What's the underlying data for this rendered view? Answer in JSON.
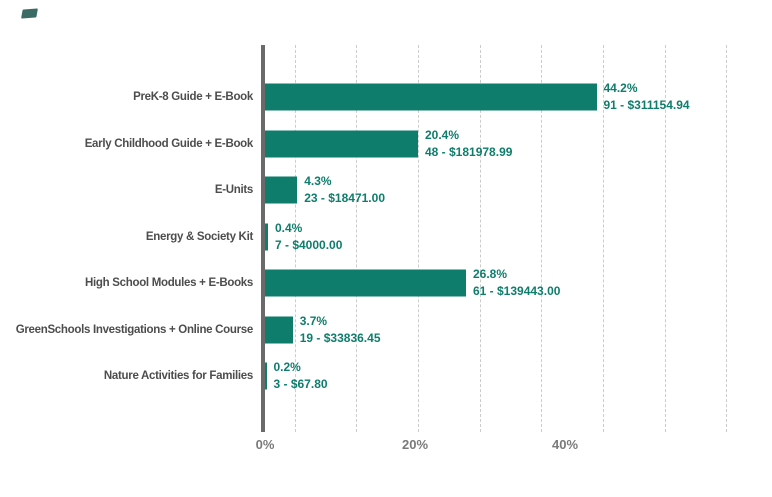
{
  "colors": {
    "bar": "#0e7d6c",
    "value_text": "#0e7d6c",
    "category_text": "#4d4d4d",
    "tick_text": "#7a7a7a"
  },
  "chart_data": {
    "type": "bar",
    "orientation": "horizontal",
    "title": "",
    "xlabel": "",
    "ylabel": "",
    "xlim": [
      0,
      62.7
    ],
    "grid": "vertical-dashed",
    "legend": "none",
    "categories": [
      "PreK-8 Guide + E-Book",
      "Early Childhood Guide + E-Book",
      "E-Units",
      "Energy & Society Kit",
      "High School Modules + E-Books",
      "GreenSchools Investigations + Online Course",
      "Nature Activities for Families"
    ],
    "values_percent": [
      44.2,
      20.4,
      4.3,
      0.4,
      26.8,
      3.7,
      0.2
    ],
    "counts": [
      91,
      48,
      23,
      7,
      61,
      19,
      3
    ],
    "revenue": [
      "$311154.94",
      "$181978.99",
      "$18471.00",
      "$4000.00",
      "$139443.00",
      "$33836.45",
      "$67.80"
    ],
    "rows": [
      {
        "category": "PreK-8 Guide + E-Book",
        "pct": 44.2,
        "pct_label": "44.2%",
        "detail": "91 - $311154.94"
      },
      {
        "category": "Early Childhood Guide + E-Book",
        "pct": 20.4,
        "pct_label": "20.4%",
        "detail": "48 - $181978.99"
      },
      {
        "category": "E-Units",
        "pct": 4.3,
        "pct_label": "4.3%",
        "detail": "23 - $18471.00"
      },
      {
        "category": "Energy & Society Kit",
        "pct": 0.4,
        "pct_label": "0.4%",
        "detail": "7 - $4000.00"
      },
      {
        "category": "High School Modules + E-Books",
        "pct": 26.8,
        "pct_label": "26.8%",
        "detail": "61 - $139443.00"
      },
      {
        "category": "GreenSchools Investigations + Online Course",
        "pct": 3.7,
        "pct_label": "3.7%",
        "detail": "19 - $33836.45"
      },
      {
        "category": "Nature Activities for Families",
        "pct": 0.2,
        "pct_label": "0.2%",
        "detail": "3 - $67.80"
      }
    ],
    "x_axis": {
      "ticks": [
        {
          "label": "0%",
          "pct": 0
        },
        {
          "label": "20%",
          "pct": 20
        },
        {
          "label": "40%",
          "pct": 40
        }
      ]
    }
  }
}
